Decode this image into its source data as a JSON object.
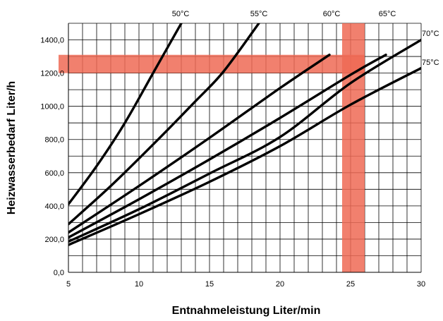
{
  "chart_data": {
    "type": "line",
    "title": "",
    "xlabel": "Entnahmeleistung Liter/min",
    "ylabel": "Heizwasserbedarf Liter/h",
    "xlim": [
      5,
      30
    ],
    "ylim": [
      0,
      1500
    ],
    "x_ticks": [
      5,
      10,
      15,
      20,
      25,
      30
    ],
    "y_ticks": [
      0,
      200,
      400,
      600,
      800,
      1000,
      1200,
      1400
    ],
    "y_tick_labels": [
      "0,0",
      "200,0",
      "400,0",
      "600,0",
      "800,0",
      "1000,0",
      "1200,0",
      "1400,0"
    ],
    "x_minor_step": 1,
    "y_minor_step": 100,
    "grid": true,
    "line_color": "#000000",
    "highlight_color": "#ef6a55",
    "series": [
      {
        "name": "50°C",
        "x": [
          5,
          7,
          9,
          11,
          13
        ],
        "y": [
          410,
          640,
          900,
          1200,
          1500
        ]
      },
      {
        "name": "55°C",
        "x": [
          5,
          8,
          11,
          14,
          16,
          18.5
        ],
        "y": [
          290,
          520,
          770,
          1030,
          1210,
          1500
        ]
      },
      {
        "name": "60°C",
        "x": [
          5,
          10,
          15,
          20,
          23.5
        ],
        "y": [
          240,
          520,
          810,
          1110,
          1310
        ]
      },
      {
        "name": "65°C",
        "x": [
          5,
          10,
          15,
          20,
          25,
          27.5
        ],
        "y": [
          210,
          440,
          680,
          930,
          1190,
          1310
        ]
      },
      {
        "name": "70°C",
        "x": [
          5,
          10,
          15,
          20,
          25,
          30
        ],
        "y": [
          185,
          380,
          595,
          815,
          1140,
          1400
        ]
      },
      {
        "name": "75°C",
        "x": [
          5,
          10,
          15,
          20,
          25,
          30
        ],
        "y": [
          165,
          350,
          545,
          760,
          1010,
          1230
        ]
      }
    ],
    "highlight_bands": [
      {
        "orientation": "horizontal",
        "from": 1200,
        "to": 1310
      },
      {
        "orientation": "vertical",
        "from": 24.4,
        "to": 26.0
      }
    ]
  }
}
